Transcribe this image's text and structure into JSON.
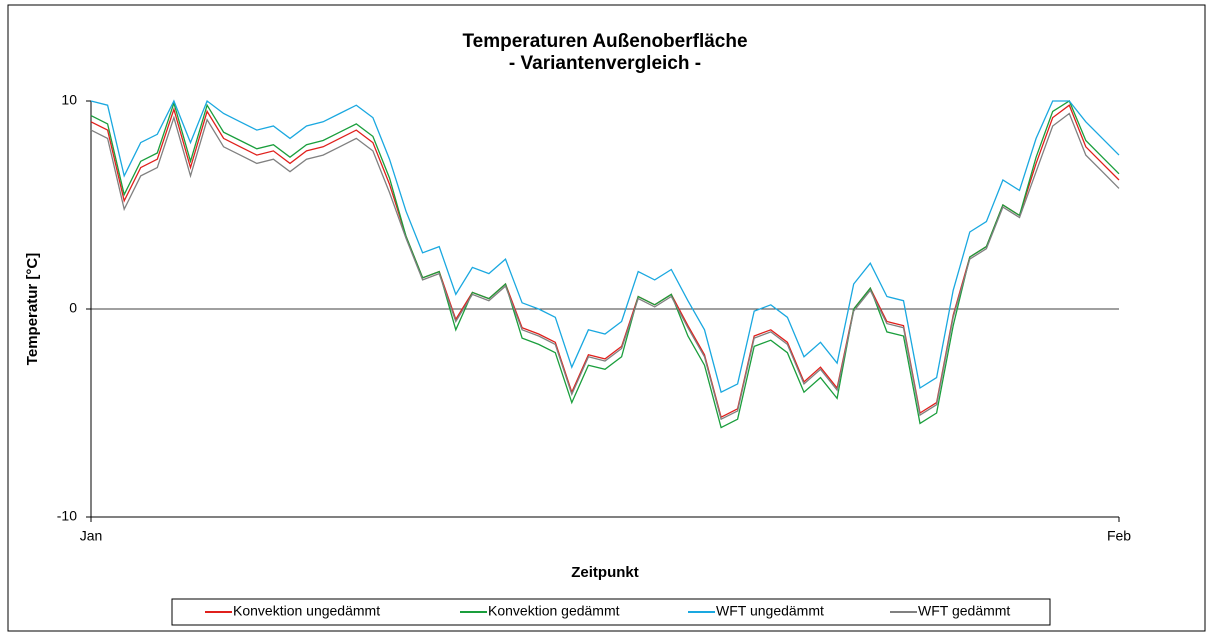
{
  "chart_data": {
    "type": "line",
    "title": "Temperaturen Außenoberfläche",
    "subtitle": "- Variantenvergleich -",
    "y_label": "Temperatur [°C]",
    "x_label": "Zeitpunkt",
    "categories": [
      "Jan",
      null,
      null,
      null,
      null,
      null,
      null,
      null,
      null,
      null,
      null,
      null,
      null,
      null,
      null,
      null,
      null,
      null,
      null,
      null,
      null,
      null,
      null,
      null,
      null,
      null,
      null,
      null,
      null,
      null,
      null,
      null,
      null,
      null,
      null,
      null,
      null,
      null,
      null,
      null,
      null,
      null,
      null,
      null,
      null,
      null,
      null,
      null,
      null,
      null,
      null,
      null,
      null,
      null,
      null,
      null,
      null,
      null,
      null,
      null,
      null,
      null,
      "Feb"
    ],
    "ylim": [
      -10,
      10
    ],
    "yticks": [
      -10,
      0,
      10
    ],
    "grid": true,
    "legend": "bottom",
    "series": [
      {
        "name": "Konvektion ungedämmt",
        "color": "#e0201c",
        "values": [
          9,
          8.6,
          5.2,
          6.8,
          7.2,
          9.6,
          6.8,
          9.5,
          8.2,
          7.8,
          7.4,
          7.6,
          7,
          7.6,
          7.8,
          8.2,
          8.6,
          8,
          6,
          3.5,
          1.5,
          1.8,
          -0.5,
          0.8,
          0.5,
          1.2,
          -0.9,
          -1.2,
          -1.6,
          -4,
          -2.2,
          -2.4,
          -1.8,
          0.6,
          0.2,
          0.7,
          -0.8,
          -2.2,
          -5.2,
          -4.8,
          -1.3,
          -1,
          -1.6,
          -3.5,
          -2.8,
          -3.8,
          0,
          1,
          -0.6,
          -0.8,
          -5,
          -4.5,
          -0.3,
          2.5,
          3,
          5,
          4.5,
          7,
          9.2,
          9.8,
          7.8,
          7,
          6.2
        ]
      },
      {
        "name": "Konvektion gedämmt",
        "color": "#1a9e3c",
        "values": [
          9.3,
          8.9,
          5.5,
          7.1,
          7.5,
          9.9,
          7.1,
          9.8,
          8.5,
          8.1,
          7.7,
          7.9,
          7.3,
          7.9,
          8.1,
          8.5,
          8.9,
          8.3,
          6.3,
          3.5,
          1.5,
          1.8,
          -1,
          0.8,
          0.5,
          1.2,
          -1.4,
          -1.7,
          -2.1,
          -4.5,
          -2.7,
          -2.9,
          -2.3,
          0.6,
          0.2,
          0.7,
          -1.3,
          -2.7,
          -5.7,
          -5.3,
          -1.8,
          -1.5,
          -2.1,
          -4,
          -3.3,
          -4.3,
          0,
          1,
          -1.1,
          -1.3,
          -5.5,
          -5,
          -0.8,
          2.5,
          3,
          5,
          4.5,
          7.3,
          9.5,
          10,
          8.1,
          7.3,
          6.5
        ]
      },
      {
        "name": "WFT ungedämmt",
        "color": "#1aa8e0",
        "values": [
          10,
          9.8,
          6.4,
          8,
          8.4,
          10,
          8,
          10,
          9.4,
          9,
          8.6,
          8.8,
          8.2,
          8.8,
          9,
          9.4,
          9.8,
          9.2,
          7.2,
          4.7,
          2.7,
          3,
          0.7,
          2,
          1.7,
          2.4,
          0.3,
          0,
          -0.4,
          -2.8,
          -1,
          -1.2,
          -0.6,
          1.8,
          1.4,
          1.9,
          0.4,
          -1,
          -4,
          -3.6,
          -0.1,
          0.2,
          -0.4,
          -2.3,
          -1.6,
          -2.6,
          1.2,
          2.2,
          0.6,
          0.4,
          -3.8,
          -3.3,
          0.9,
          3.7,
          4.2,
          6.2,
          5.7,
          8.2,
          10,
          10,
          9,
          8.2,
          7.4
        ]
      },
      {
        "name": "WFT gedämmt",
        "color": "#808080",
        "values": [
          8.6,
          8.2,
          4.8,
          6.4,
          6.8,
          9.2,
          6.4,
          9.1,
          7.8,
          7.4,
          7,
          7.2,
          6.6,
          7.2,
          7.4,
          7.8,
          8.2,
          7.6,
          5.6,
          3.4,
          1.4,
          1.7,
          -0.6,
          0.7,
          0.4,
          1.1,
          -1,
          -1.3,
          -1.7,
          -4.1,
          -2.3,
          -2.5,
          -1.9,
          0.5,
          0.1,
          0.6,
          -0.9,
          -2.3,
          -5.3,
          -4.9,
          -1.4,
          -1.1,
          -1.7,
          -3.6,
          -2.9,
          -3.9,
          -0.1,
          0.9,
          -0.7,
          -0.9,
          -5.1,
          -4.6,
          -0.4,
          2.4,
          2.9,
          4.9,
          4.4,
          6.6,
          8.8,
          9.4,
          7.4,
          6.6,
          5.8
        ]
      }
    ]
  }
}
